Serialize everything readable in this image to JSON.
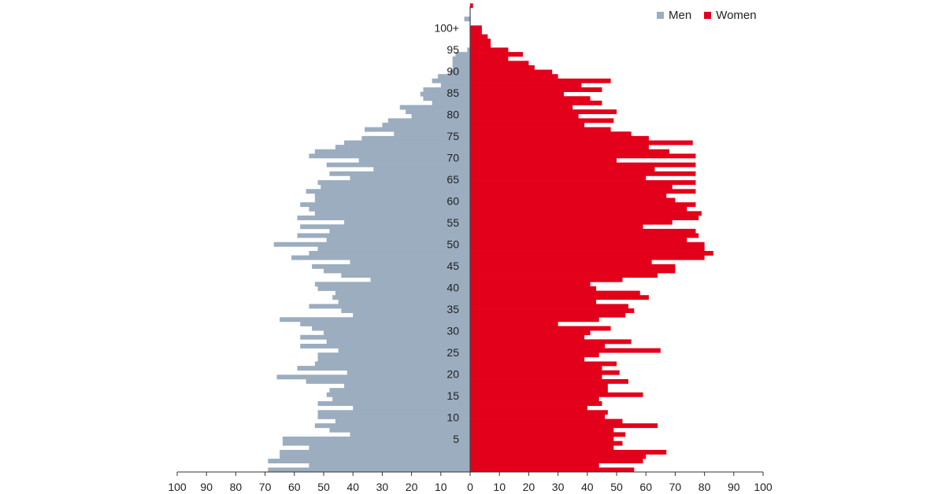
{
  "chart_data": {
    "type": "bar",
    "orientation": "horizontal-population-pyramid",
    "title": "",
    "xlabel": "",
    "ylabel": "",
    "xlim": [
      -100,
      100
    ],
    "x_ticks": [
      100,
      90,
      80,
      70,
      60,
      50,
      40,
      30,
      20,
      10,
      0,
      10,
      20,
      30,
      40,
      50,
      60,
      70,
      80,
      90,
      100
    ],
    "y_tick_labels": [
      "5",
      "10",
      "15",
      "20",
      "25",
      "30",
      "35",
      "40",
      "45",
      "50",
      "55",
      "60",
      "65",
      "70",
      "75",
      "80",
      "85",
      "90",
      "95",
      "100+"
    ],
    "legend": {
      "position": "top-right",
      "entries": [
        "Men",
        "Women"
      ]
    },
    "colors": {
      "men": "#9badbf",
      "women": "#e2001a"
    },
    "series": [
      {
        "name": "Men",
        "values": [
          69,
          55,
          69,
          65,
          65,
          55,
          64,
          64,
          41,
          48,
          53,
          46,
          52,
          52,
          40,
          52,
          47,
          49,
          48,
          43,
          56,
          66,
          42,
          59,
          53,
          52,
          52,
          45,
          58,
          49,
          58,
          50,
          54,
          58,
          65,
          40,
          44,
          55,
          45,
          47,
          46,
          52,
          53,
          34,
          44,
          50,
          54,
          41,
          61,
          55,
          52,
          67,
          49,
          59,
          48,
          58,
          43,
          59,
          53,
          55,
          58,
          53,
          53,
          56,
          51,
          52,
          41,
          48,
          33,
          49,
          38,
          55,
          53,
          46,
          43,
          37,
          26,
          36,
          30,
          28,
          20,
          22,
          24,
          13,
          16,
          17,
          16,
          10,
          13,
          11,
          7,
          6,
          6,
          6,
          5,
          1,
          0,
          0,
          0,
          0,
          0,
          0,
          2,
          0,
          0,
          0
        ]
      },
      {
        "name": "Women",
        "values": [
          56,
          44,
          59,
          60,
          67,
          49,
          52,
          49,
          53,
          49,
          64,
          52,
          46,
          47,
          40,
          45,
          44,
          59,
          47,
          47,
          54,
          45,
          51,
          45,
          50,
          39,
          44,
          65,
          46,
          55,
          39,
          41,
          48,
          30,
          44,
          53,
          56,
          54,
          43,
          61,
          58,
          43,
          41,
          52,
          64,
          70,
          70,
          62,
          80,
          83,
          80,
          80,
          74,
          78,
          77,
          59,
          69,
          78,
          79,
          74,
          77,
          70,
          67,
          77,
          69,
          77,
          60,
          77,
          63,
          77,
          50,
          77,
          68,
          61,
          76,
          61,
          55,
          48,
          39,
          49,
          37,
          50,
          35,
          45,
          41,
          32,
          45,
          38,
          48,
          30,
          28,
          22,
          20,
          13,
          18,
          13,
          7,
          7,
          6,
          4,
          4,
          0,
          0,
          0,
          0,
          1
        ]
      }
    ]
  }
}
